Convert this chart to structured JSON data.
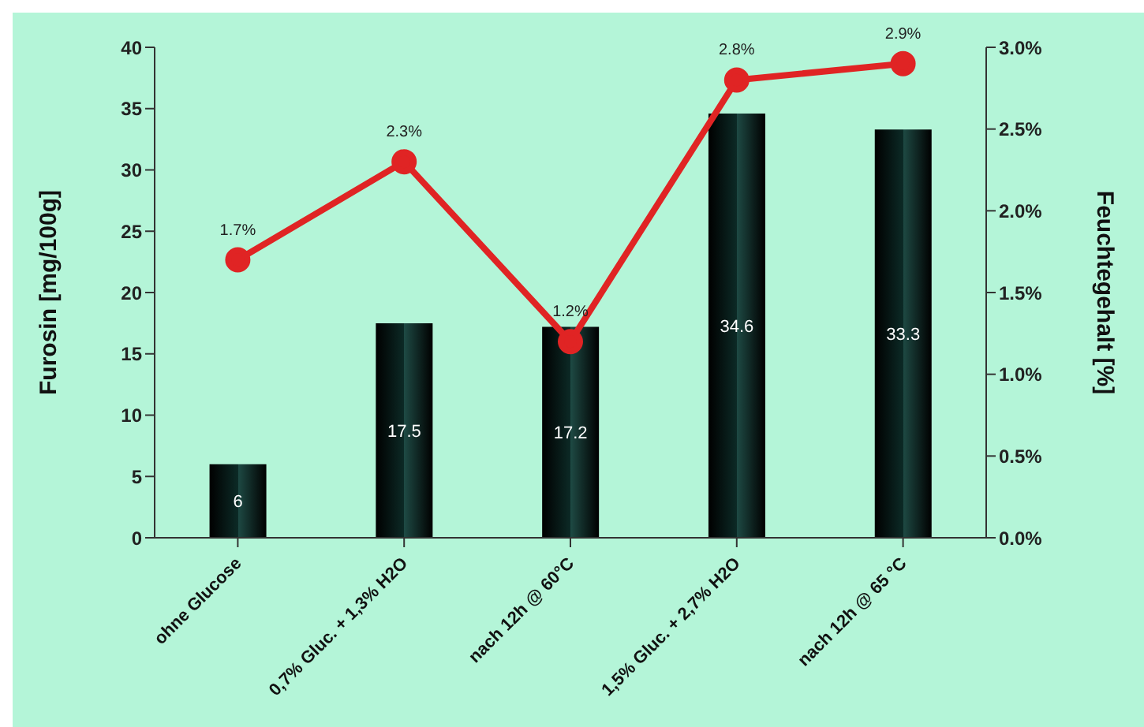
{
  "chart_data": {
    "type": "bar",
    "categories": [
      "ohne Glucose",
      "0,7% Gluc. + 1,3% H2O",
      "nach 12h @ 60°C",
      "1,5% Gluc. + 2,7% H2O",
      "nach 12h @ 65 °C"
    ],
    "series": [
      {
        "color": "#0c2a26",
        "values": [
          6,
          17.5,
          17.2,
          34.6,
          33.3
        ],
        "value_labels": [
          "6",
          "17.5",
          "17.2",
          "34.6",
          "33.3"
        ]
      },
      {
        "type": "line",
        "axis": "y2",
        "color": "#e02424",
        "values": [
          1.7,
          2.3,
          1.2,
          2.8,
          2.9
        ],
        "value_labels": [
          "1.7%",
          "2.3%",
          "1.2%",
          "2.8%",
          "2.9%"
        ]
      }
    ],
    "ylabel": "Furosin [mg/100g]",
    "y2label": "Feuchtegehalt [%]",
    "ylim": [
      0,
      40
    ],
    "yticks": [
      0,
      5,
      10,
      15,
      20,
      25,
      30,
      35,
      40
    ],
    "y2lim": [
      0,
      3
    ],
    "y2ticks": [
      {
        "value": 0,
        "label": "0.0%"
      },
      {
        "value": 0.5,
        "label": "0.5%"
      },
      {
        "value": 1,
        "label": "1.0%"
      },
      {
        "value": 1.5,
        "label": "1.5%"
      },
      {
        "value": 2,
        "label": "2.0%"
      },
      {
        "value": 2.5,
        "label": "2.5%"
      },
      {
        "value": 3,
        "label": "3.0%"
      }
    ],
    "marker": "circle",
    "grid": false,
    "legend": false
  }
}
